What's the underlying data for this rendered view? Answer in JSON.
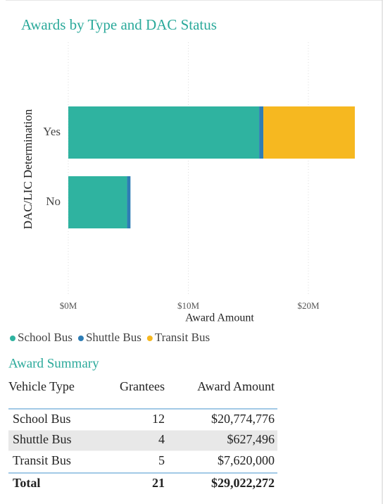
{
  "chart_data": {
    "type": "stacked_barh",
    "title": "Awards by Type and DAC Status",
    "categories": [
      "Yes",
      "No"
    ],
    "series": [
      {
        "name": "School Bus",
        "color": "#2fb3a0",
        "values": [
          15.9,
          4.9
        ]
      },
      {
        "name": "Shuttle Bus",
        "color": "#2e7db5",
        "values": [
          0.35,
          0.28
        ]
      },
      {
        "name": "Transit Bus",
        "color": "#f6b820",
        "values": [
          7.62,
          0
        ]
      }
    ],
    "xlim": [
      0,
      26.5
    ],
    "xticks": [
      {
        "value": 0,
        "label": "$0M"
      },
      {
        "value": 10,
        "label": "$10M"
      },
      {
        "value": 20,
        "label": "$20M"
      }
    ],
    "xlabel": "Award Amount",
    "ylabel": "DAC/LIC Determination",
    "grid": true,
    "legend": "bottom"
  },
  "table": {
    "title": "Award Summary",
    "columns": [
      "Vehicle Type",
      "Grantees",
      "Award Amount"
    ],
    "rows": [
      [
        "School Bus",
        "12",
        "$20,774,776"
      ],
      [
        "Shuttle Bus",
        "4",
        "$627,496"
      ],
      [
        "Transit Bus",
        "5",
        "$7,620,000"
      ]
    ],
    "total": [
      "Total",
      "21",
      "$29,022,272"
    ]
  }
}
